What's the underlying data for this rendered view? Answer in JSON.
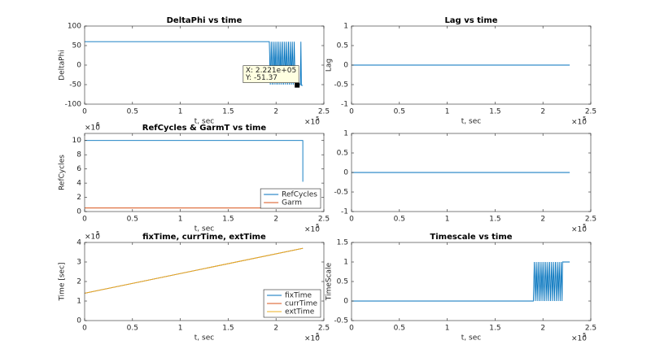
{
  "chart_data": [
    {
      "type": "line",
      "title": "DeltaPhi vs time",
      "xlabel": "t, sec",
      "ylabel": "DeltaPhi",
      "xlim": [
        0,
        250000
      ],
      "ylim": [
        -100,
        100
      ],
      "xticks": [
        0,
        {
          "value": 50000,
          "label": "0.5"
        },
        {
          "value": 100000,
          "label": "1"
        },
        {
          "value": 150000,
          "label": "1.5"
        },
        {
          "value": 200000,
          "label": "2"
        },
        {
          "value": 250000,
          "label": "2.5"
        }
      ],
      "yticks": [
        -100,
        -50,
        0,
        50,
        100
      ],
      "x_scale": {
        "base": "×10",
        "exponent": "5"
      },
      "series": [
        {
          "color": "#0072BD",
          "x": [
            0,
            192000,
            193000,
            194000,
            195000,
            196000,
            197000,
            198000,
            199000,
            200000,
            201000,
            202000,
            203000,
            204000,
            205000,
            206000,
            207000,
            208000,
            209000,
            210000,
            211000,
            212000,
            213000,
            214000,
            215000,
            216000,
            217000,
            218000,
            219000,
            220000,
            225500,
            226000,
            226500,
            228000
          ],
          "values": [
            60,
            60,
            60,
            -50,
            60,
            -50,
            60,
            -50,
            60,
            -50,
            60,
            -50,
            60,
            -50,
            60,
            -50,
            60,
            -50,
            60,
            -50,
            60,
            -50,
            60,
            -50,
            60,
            -50,
            60,
            -50,
            60,
            -50,
            -50,
            60,
            -52,
            -52
          ]
        }
      ],
      "datatip": {
        "x": 222100,
        "y": -51.37,
        "x_label": "X: 2.221e+05",
        "y_label": "Y: -51.37"
      }
    },
    {
      "type": "line",
      "title": "Lag vs time",
      "xlabel": "t, sec",
      "ylabel": "Lag",
      "xlim": [
        0,
        250000
      ],
      "ylim": [
        -1,
        1
      ],
      "xticks": [
        0,
        {
          "value": 50000,
          "label": "0.5"
        },
        {
          "value": 100000,
          "label": "1"
        },
        {
          "value": 150000,
          "label": "1.5"
        },
        {
          "value": 200000,
          "label": "2"
        },
        {
          "value": 250000,
          "label": "2.5"
        }
      ],
      "yticks": [
        -1,
        -0.5,
        0,
        0.5,
        1
      ],
      "x_scale": {
        "base": "×10",
        "exponent": "5"
      },
      "series": [
        {
          "color": "#0072BD",
          "x": [
            0,
            228000
          ],
          "values": [
            0,
            0
          ]
        }
      ]
    },
    {
      "type": "line",
      "title": "RefCycles & GarmT vs time",
      "xlabel": "t, sec",
      "ylabel": "RefCycles",
      "xlim": [
        0,
        250000
      ],
      "ylim": [
        0,
        11000000
      ],
      "xticks": [
        0,
        {
          "value": 50000,
          "label": "0.5"
        },
        {
          "value": 100000,
          "label": "1"
        },
        {
          "value": 150000,
          "label": "1.5"
        },
        {
          "value": 200000,
          "label": "2"
        },
        {
          "value": 250000,
          "label": "2.5"
        }
      ],
      "yticks": [
        0,
        {
          "value": 2000000,
          "label": "2"
        },
        {
          "value": 4000000,
          "label": "4"
        },
        {
          "value": 6000000,
          "label": "6"
        },
        {
          "value": 8000000,
          "label": "8"
        },
        {
          "value": 10000000,
          "label": "10"
        }
      ],
      "x_scale": {
        "base": "×10",
        "exponent": "5"
      },
      "y_scale": {
        "base": "×10",
        "exponent": "6"
      },
      "legend": "southeast",
      "series": [
        {
          "name": "RefCycles",
          "color": "#0072BD",
          "x": [
            0,
            228000,
            228000
          ],
          "values": [
            10000000,
            10000000,
            4200000
          ]
        },
        {
          "name": "Garm",
          "color": "#D95319",
          "x": [
            0,
            228000
          ],
          "values": [
            500000,
            500000
          ]
        }
      ]
    },
    {
      "type": "line",
      "xlim": [
        0,
        250000
      ],
      "ylim": [
        -1,
        1
      ],
      "xticks": [
        0,
        {
          "value": 50000,
          "label": "0.5"
        },
        {
          "value": 100000,
          "label": "1"
        },
        {
          "value": 150000,
          "label": "1.5"
        },
        {
          "value": 200000,
          "label": "2"
        },
        {
          "value": 250000,
          "label": "2.5"
        }
      ],
      "yticks": [
        -1,
        -0.5,
        0,
        0.5,
        1
      ],
      "x_scale": {
        "base": "×10",
        "exponent": "5"
      },
      "series": [
        {
          "color": "#0072BD",
          "x": [
            0,
            228000
          ],
          "values": [
            0,
            0
          ]
        }
      ]
    },
    {
      "type": "line",
      "title": "fixTime, currTime, extTime",
      "xlabel": "t, sec",
      "ylabel": "Time [sec]",
      "xlim": [
        0,
        250000
      ],
      "ylim": [
        0,
        400000
      ],
      "xticks": [
        0,
        {
          "value": 50000,
          "label": "0.5"
        },
        {
          "value": 100000,
          "label": "1"
        },
        {
          "value": 150000,
          "label": "1.5"
        },
        {
          "value": 200000,
          "label": "2"
        },
        {
          "value": 250000,
          "label": "2.5"
        }
      ],
      "yticks": [
        0,
        {
          "value": 100000,
          "label": "1"
        },
        {
          "value": 200000,
          "label": "2"
        },
        {
          "value": 300000,
          "label": "3"
        },
        {
          "value": 400000,
          "label": "4"
        }
      ],
      "x_scale": {
        "base": "×10",
        "exponent": "5"
      },
      "y_scale": {
        "base": "×10",
        "exponent": "5"
      },
      "legend": "southeast",
      "series": [
        {
          "name": "fixTime",
          "color": "#0072BD",
          "x": [
            0,
            228000
          ],
          "values": [
            140000,
            370000
          ]
        },
        {
          "name": "currTime",
          "color": "#D95319",
          "x": [
            0,
            228000
          ],
          "values": [
            140000,
            370000
          ]
        },
        {
          "name": "extTime",
          "color": "#EDB120",
          "x": [
            0,
            228000
          ],
          "values": [
            140000,
            370000
          ]
        }
      ]
    },
    {
      "type": "line",
      "title": "Timescale vs time",
      "xlabel": "t, sec",
      "ylabel": "TimeScale",
      "xlim": [
        0,
        250000
      ],
      "ylim": [
        -0.5,
        1.5
      ],
      "xticks": [
        0,
        {
          "value": 50000,
          "label": "0.5"
        },
        {
          "value": 100000,
          "label": "1"
        },
        {
          "value": 150000,
          "label": "1.5"
        },
        {
          "value": 200000,
          "label": "2"
        },
        {
          "value": 250000,
          "label": "2.5"
        }
      ],
      "yticks": [
        -0.5,
        0,
        0.5,
        1,
        1.5
      ],
      "x_scale": {
        "base": "×10",
        "exponent": "5"
      },
      "series": [
        {
          "color": "#0072BD",
          "x": [
            0,
            190000,
            191000,
            192000,
            193000,
            194000,
            195000,
            196000,
            197000,
            198000,
            199000,
            200000,
            201000,
            202000,
            203000,
            204000,
            205000,
            206000,
            207000,
            208000,
            209000,
            210000,
            211000,
            212000,
            213000,
            214000,
            215000,
            216000,
            217000,
            218000,
            219000,
            220000,
            220500,
            228000
          ],
          "values": [
            0,
            0,
            1,
            0,
            1,
            0,
            1,
            0,
            1,
            0,
            1,
            0,
            1,
            0,
            1,
            0,
            1,
            0,
            1,
            0,
            1,
            0,
            1,
            0,
            1,
            0,
            1,
            0,
            1,
            0,
            1,
            0,
            1,
            1
          ]
        }
      ]
    }
  ]
}
